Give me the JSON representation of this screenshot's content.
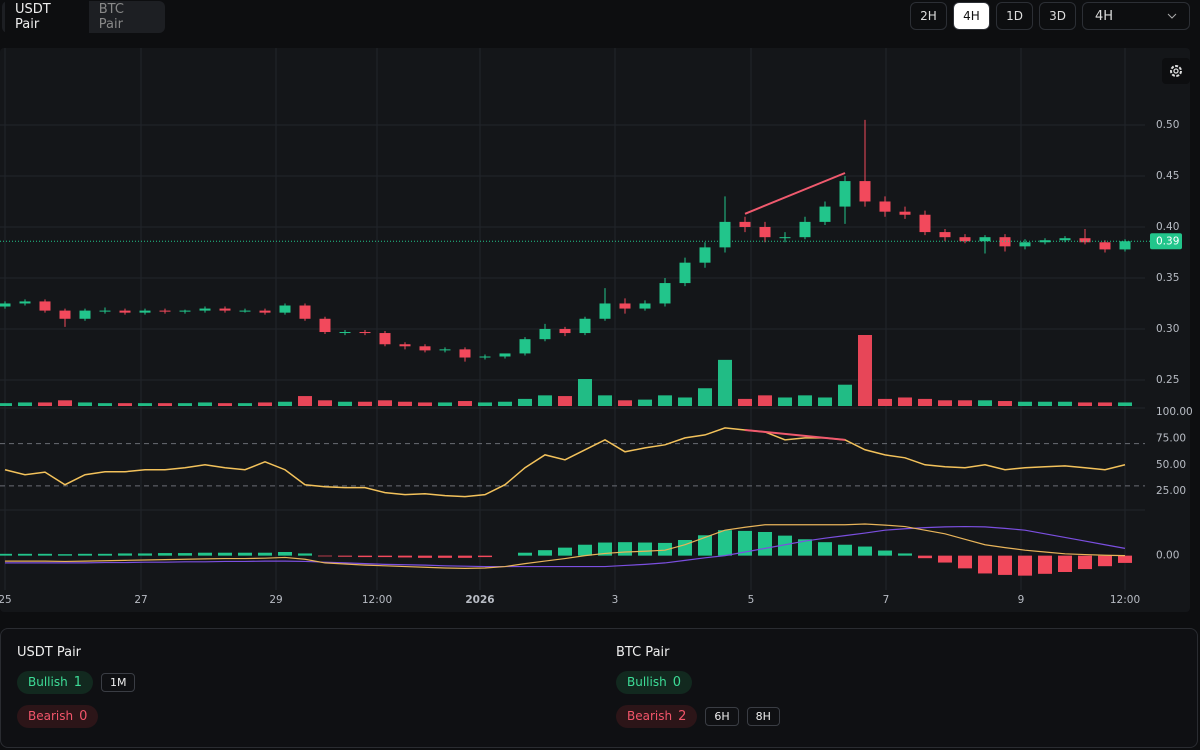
{
  "tabs": {
    "items": [
      "USDT Pair",
      "BTC Pair"
    ],
    "active": 0
  },
  "timeframes": {
    "items": [
      "2H",
      "4H",
      "1D",
      "3D"
    ],
    "active": 1,
    "select": "4H"
  },
  "chart_data": {
    "type": "candlestick",
    "open": [
      0.322,
      0.325,
      0.327,
      0.318,
      0.31,
      0.318,
      0.318,
      0.316,
      0.318,
      0.317,
      0.318,
      0.32,
      0.318,
      0.318,
      0.316,
      0.323,
      0.31,
      0.297,
      0.297,
      0.296,
      0.285,
      0.283,
      0.279,
      0.28,
      0.272,
      0.273,
      0.276,
      0.29,
      0.3,
      0.296,
      0.31,
      0.325,
      0.32,
      0.325,
      0.345,
      0.365,
      0.38,
      0.405,
      0.4,
      0.39,
      0.39,
      0.405,
      0.42,
      0.445,
      0.425,
      0.415,
      0.412,
      0.395,
      0.39,
      0.386,
      0.39,
      0.381,
      0.385,
      0.387,
      0.389,
      0.385,
      0.378
    ],
    "high": [
      0.327,
      0.329,
      0.329,
      0.32,
      0.32,
      0.321,
      0.32,
      0.32,
      0.32,
      0.319,
      0.322,
      0.322,
      0.32,
      0.32,
      0.325,
      0.325,
      0.312,
      0.299,
      0.299,
      0.298,
      0.287,
      0.285,
      0.282,
      0.282,
      0.275,
      0.276,
      0.292,
      0.305,
      0.302,
      0.312,
      0.34,
      0.33,
      0.328,
      0.35,
      0.37,
      0.385,
      0.43,
      0.41,
      0.405,
      0.395,
      0.41,
      0.425,
      0.45,
      0.505,
      0.43,
      0.42,
      0.416,
      0.398,
      0.393,
      0.392,
      0.393,
      0.388,
      0.389,
      0.391,
      0.398,
      0.387,
      0.388
    ],
    "low": [
      0.32,
      0.323,
      0.316,
      0.302,
      0.308,
      0.315,
      0.314,
      0.314,
      0.315,
      0.315,
      0.316,
      0.316,
      0.316,
      0.314,
      0.314,
      0.308,
      0.295,
      0.294,
      0.294,
      0.283,
      0.28,
      0.277,
      0.277,
      0.268,
      0.27,
      0.271,
      0.274,
      0.288,
      0.293,
      0.294,
      0.308,
      0.315,
      0.318,
      0.322,
      0.342,
      0.36,
      0.375,
      0.395,
      0.385,
      0.385,
      0.388,
      0.402,
      0.403,
      0.42,
      0.41,
      0.408,
      0.392,
      0.386,
      0.384,
      0.374,
      0.376,
      0.378,
      0.383,
      0.385,
      0.383,
      0.375,
      0.376
    ],
    "close": [
      0.325,
      0.327,
      0.318,
      0.31,
      0.318,
      0.318,
      0.316,
      0.318,
      0.317,
      0.318,
      0.32,
      0.318,
      0.318,
      0.316,
      0.323,
      0.31,
      0.297,
      0.297,
      0.296,
      0.285,
      0.283,
      0.279,
      0.28,
      0.272,
      0.273,
      0.276,
      0.29,
      0.3,
      0.296,
      0.31,
      0.325,
      0.32,
      0.325,
      0.345,
      0.365,
      0.38,
      0.405,
      0.4,
      0.39,
      0.39,
      0.405,
      0.42,
      0.445,
      0.425,
      0.415,
      0.412,
      0.395,
      0.39,
      0.386,
      0.39,
      0.381,
      0.385,
      0.387,
      0.389,
      0.385,
      0.378,
      0.386
    ],
    "volume": [
      4,
      5,
      5,
      8,
      5,
      4,
      4,
      4,
      4,
      4,
      5,
      4,
      4,
      5,
      6,
      14,
      8,
      6,
      6,
      8,
      6,
      5,
      5,
      7,
      5,
      6,
      10,
      15,
      14,
      38,
      15,
      8,
      9,
      15,
      12,
      25,
      65,
      10,
      15,
      12,
      15,
      12,
      30,
      100,
      10,
      12,
      10,
      8,
      8,
      8,
      7,
      6,
      6,
      6,
      5,
      5,
      5
    ],
    "volume_lim": [
      0,
      100
    ],
    "colors": {
      "up": "#22c58b",
      "down": "#f2495c"
    },
    "xlim": [
      -0.25,
      57
    ],
    "xticks": [
      {
        "value": 0,
        "label": "25"
      },
      {
        "value": 6.8,
        "label": "27"
      },
      {
        "value": 13.55,
        "label": "29"
      },
      {
        "value": 18.6,
        "label": "12:00"
      },
      {
        "value": 23.75,
        "label": "2026",
        "bold": true
      },
      {
        "value": 30.5,
        "label": "3"
      },
      {
        "value": 37.3,
        "label": "5"
      },
      {
        "value": 44.05,
        "label": "7"
      },
      {
        "value": 50.8,
        "label": "9"
      },
      {
        "value": 56,
        "label": "12:00"
      }
    ],
    "ylim": [
      0.2225,
      0.5755
    ],
    "yticks": [
      0.25,
      {
        "value": 0.3,
        "label": "0.30"
      },
      0.35,
      {
        "value": 0.4,
        "label": "0.40"
      },
      0.45,
      {
        "value": 0.5,
        "label": "0.50"
      }
    ],
    "grid": true,
    "last_price": {
      "value": 0.386,
      "label": "0.39"
    },
    "rsi": {
      "color": "#f3c25b",
      "ylim": [
        10,
        100
      ],
      "levels": [
        70,
        30
      ],
      "yticks": [
        {
          "value": 100,
          "label": "100.00"
        },
        {
          "value": 75,
          "label": "75.00"
        },
        {
          "value": 50,
          "label": "50.00"
        },
        {
          "value": 25,
          "label": "25.00"
        }
      ],
      "values": [
        45.3,
        40.6,
        43,
        31.1,
        40.6,
        43.4,
        43.4,
        45.3,
        45.3,
        47.2,
        50,
        47.2,
        45.3,
        52.8,
        45.3,
        31.1,
        29.2,
        28.3,
        28.3,
        23.6,
        21.7,
        22.6,
        20.8,
        19.8,
        21.7,
        31.1,
        47.2,
        59.4,
        54.7,
        64.2,
        73.6,
        62.3,
        66,
        68.9,
        75.5,
        78.3,
        84.9,
        83,
        81.1,
        73.6,
        75.5,
        75.5,
        73.6,
        64.2,
        59.4,
        56.6,
        50,
        48.1,
        47.2,
        50,
        45.3,
        47.2,
        48.1,
        49,
        47.2,
        45.3,
        50
      ]
    },
    "macd": {
      "ylim": [
        -0.01,
        0.012
      ],
      "yticks": [
        {
          "value": 0,
          "label": "0.00"
        }
      ],
      "macd": {
        "color": "#e8b45a",
        "values": [
          -0.0015,
          -0.0015,
          -0.0015,
          -0.0016,
          -0.0015,
          -0.0014,
          -0.0013,
          -0.0012,
          -0.0011,
          -0.001,
          -0.0009,
          -0.0008,
          -0.0008,
          -0.0007,
          -0.0005,
          -0.001,
          -0.002,
          -0.0023,
          -0.0026,
          -0.0028,
          -0.003,
          -0.0032,
          -0.0034,
          -0.0035,
          -0.0034,
          -0.003,
          -0.0022,
          -0.0015,
          -0.0008,
          0,
          0.0006,
          0.001,
          0.0012,
          0.0015,
          0.003,
          0.005,
          0.007,
          0.0078,
          0.0085,
          0.0085,
          0.0085,
          0.0085,
          0.0085,
          0.0087,
          0.0084,
          0.008,
          0.007,
          0.006,
          0.0045,
          0.003,
          0.0022,
          0.0015,
          0.001,
          0.0005,
          0.0003,
          0.0001,
          0
        ]
      },
      "signal": {
        "color": "#7b4fe0",
        "values": [
          -0.002,
          -0.002,
          -0.002,
          -0.002,
          -0.002,
          -0.0019,
          -0.0019,
          -0.0018,
          -0.0018,
          -0.0017,
          -0.0017,
          -0.0016,
          -0.0016,
          -0.0015,
          -0.0015,
          -0.0016,
          -0.0018,
          -0.002,
          -0.0022,
          -0.0024,
          -0.0025,
          -0.0026,
          -0.0028,
          -0.0029,
          -0.003,
          -0.003,
          -0.003,
          -0.003,
          -0.003,
          -0.003,
          -0.003,
          -0.0027,
          -0.0024,
          -0.002,
          -0.0013,
          -0.0006,
          0,
          0.001,
          0.002,
          0.003,
          0.004,
          0.0048,
          0.0055,
          0.0062,
          0.007,
          0.0074,
          0.0077,
          0.0079,
          0.008,
          0.0079,
          0.0075,
          0.007,
          0.006,
          0.005,
          0.004,
          0.003,
          0.002
        ]
      },
      "histogram": {
        "values": [
          0.0005,
          0.0005,
          0.0005,
          0.0004,
          0.0005,
          0.0005,
          0.0006,
          0.0006,
          0.0007,
          0.0007,
          0.0008,
          0.0008,
          0.0008,
          0.0008,
          0.001,
          0.0006,
          -0.0002,
          -0.0003,
          -0.0004,
          -0.0004,
          -0.0005,
          -0.0006,
          -0.0006,
          -0.0006,
          -0.0004,
          0,
          0.0008,
          0.0015,
          0.0022,
          0.003,
          0.0036,
          0.0037,
          0.0036,
          0.0035,
          0.0043,
          0.0056,
          0.007,
          0.0068,
          0.0065,
          0.0055,
          0.0045,
          0.0037,
          0.003,
          0.0025,
          0.0014,
          0.0006,
          -0.0007,
          -0.0019,
          -0.0035,
          -0.0049,
          -0.0053,
          -0.0055,
          -0.005,
          -0.0045,
          -0.0037,
          -0.0029,
          -0.002
        ]
      }
    },
    "divergence": {
      "start": 37,
      "end": 42,
      "color": "#f05a6e"
    }
  },
  "summary": [
    {
      "title": "USDT Pair",
      "bullish": {
        "label": "Bullish",
        "count": 1,
        "timeframes": [
          "1M"
        ]
      },
      "bearish": {
        "label": "Bearish",
        "count": 0,
        "timeframes": []
      }
    },
    {
      "title": "BTC Pair",
      "bullish": {
        "label": "Bullish",
        "count": 0,
        "timeframes": []
      },
      "bearish": {
        "label": "Bearish",
        "count": 2,
        "timeframes": [
          "6H",
          "8H"
        ]
      }
    }
  ]
}
